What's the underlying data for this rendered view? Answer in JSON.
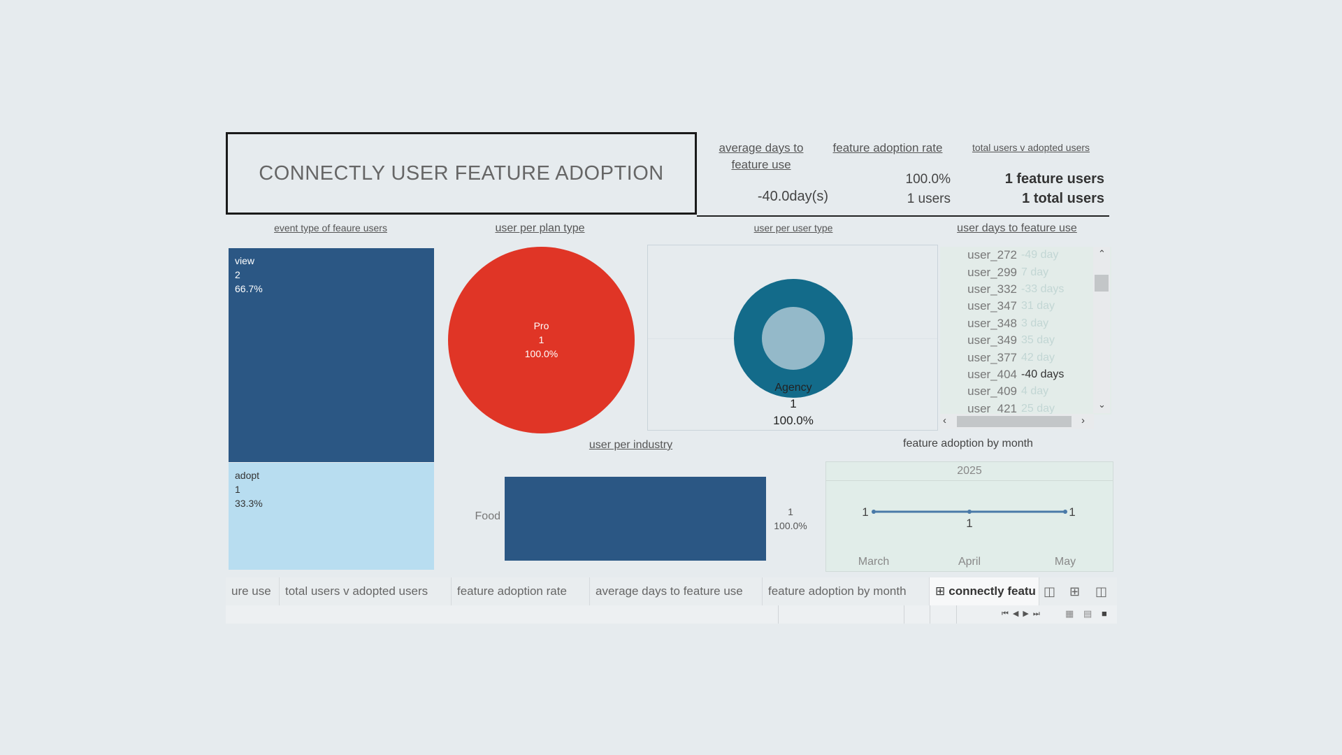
{
  "dashboard": {
    "title": "CONNECTLY USER FEATURE  ADOPTION"
  },
  "kpis": {
    "avg_days": {
      "title_line1": "average days to",
      "title_line2": "feature use",
      "value": "-40.0day(s)"
    },
    "adoption_rate": {
      "title": "feature adoption rate",
      "value_line1": "100.0%",
      "value_line2": "1 users"
    },
    "total_users": {
      "title": "total users v adopted users",
      "value_line1": "1 feature users",
      "value_line2": "1 total users"
    }
  },
  "event_type": {
    "title": "event type of feaure users",
    "cells": [
      {
        "name": "view",
        "count": "2",
        "pct": "66.7%",
        "share": 0.667,
        "color": "#2b5784"
      },
      {
        "name": "adopt",
        "count": "1",
        "pct": "33.3%",
        "share": 0.333,
        "color": "#b8ddf0"
      }
    ]
  },
  "plan_type": {
    "title": "user per plan type",
    "slice": {
      "name": "Pro",
      "count": "1",
      "pct": "100.0%",
      "color": "#e03526"
    }
  },
  "user_type": {
    "title": "user per user type",
    "slice": {
      "name": "Agency",
      "count": "1",
      "pct": "100.0%",
      "outer_color": "#136b8a",
      "inner_color": "#94b9c9"
    }
  },
  "user_days": {
    "title": "user days to feature use",
    "rows": [
      {
        "user": "user_272",
        "value": "-49 day"
      },
      {
        "user": "user_299",
        "value": "7 day"
      },
      {
        "user": "user_332",
        "value": "-33 days"
      },
      {
        "user": "user_347",
        "value": "31 day"
      },
      {
        "user": "user_348",
        "value": "3 day"
      },
      {
        "user": "user_349",
        "value": "35 day"
      },
      {
        "user": "user_377",
        "value": "42 day"
      },
      {
        "user": "user_404",
        "value": "-40 days"
      },
      {
        "user": "user_409",
        "value": "4 day"
      },
      {
        "user": "user_421",
        "value": "25 day"
      }
    ],
    "highlighted_index": 7
  },
  "industry": {
    "title": "user per industry",
    "bars": [
      {
        "category": "Food",
        "count": "1",
        "pct": "100.0%",
        "share": 1.0,
        "color": "#2b5784"
      }
    ]
  },
  "monthly": {
    "title": "feature adoption by month",
    "year": "2025",
    "months": [
      "March",
      "April",
      "May"
    ],
    "values": [
      1,
      1,
      1
    ],
    "labels": [
      "1",
      "1",
      "1"
    ],
    "line_color": "#4a7aa8"
  },
  "tabs": [
    {
      "label": "ure use",
      "active": false
    },
    {
      "label": "total users v adopted users",
      "active": false
    },
    {
      "label": "feature adoption rate",
      "active": false
    },
    {
      "label": "average days to feature use",
      "active": false
    },
    {
      "label": "feature adoption by month",
      "active": false
    },
    {
      "label": "connectly featu",
      "active": true
    }
  ],
  "icons": {
    "new_worksheet": "new-worksheet-icon",
    "new_dashboard": "new-dashboard-icon",
    "new_story": "new-story-icon",
    "nav_first": "first-sheet-icon",
    "nav_prev": "prev-sheet-icon",
    "nav_next": "next-sheet-icon",
    "nav_last": "last-sheet-icon",
    "view_grid": "sheet-sorter-icon",
    "view_film": "filmstrip-icon",
    "view_tabs": "tabs-icon"
  }
}
